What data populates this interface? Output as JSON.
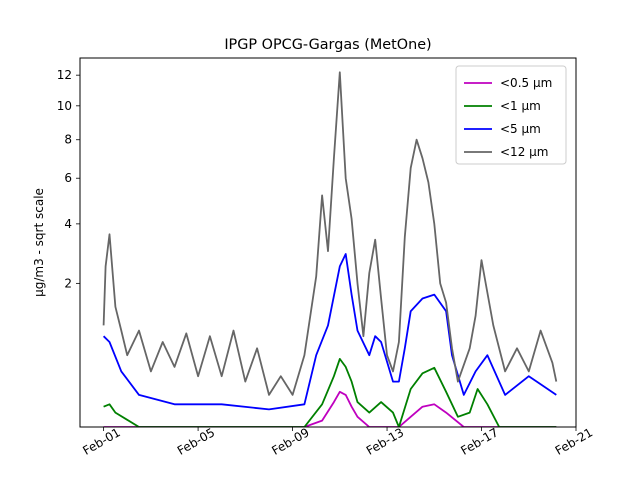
{
  "chart_data": {
    "type": "line",
    "title": "IPGP OPCG-Gargas (MetOne)",
    "ylabel": "µg/m3 - sqrt scale",
    "xlabel": "",
    "y_scale": "sqrt",
    "ylim": [
      0,
      13.2
    ],
    "xlim": [
      "2026-01-31T00:00",
      "2026-02-21T00:00"
    ],
    "x_ticks": [
      {
        "label": "Feb-01",
        "date": "2026-02-01"
      },
      {
        "label": "Feb-05",
        "date": "2026-02-05"
      },
      {
        "label": "Feb-09",
        "date": "2026-02-09"
      },
      {
        "label": "Feb-13",
        "date": "2026-02-13"
      },
      {
        "label": "Feb-17",
        "date": "2026-02-17"
      },
      {
        "label": "Feb-21",
        "date": "2026-02-21"
      }
    ],
    "y_ticks": [
      2,
      4,
      6,
      8,
      10,
      12
    ],
    "grid": false,
    "legend_position": "top-right",
    "series": [
      {
        "name": "<0.5 µm",
        "color": "#bf00bf",
        "x": [
          "2026-02-01T00:00",
          "2026-02-09T12:00",
          "2026-02-10T06:00",
          "2026-02-10T18:00",
          "2026-02-11T00:00",
          "2026-02-11T06:00",
          "2026-02-11T12:00",
          "2026-02-11T18:00",
          "2026-02-12T06:00",
          "2026-02-13T12:00",
          "2026-02-14T00:00",
          "2026-02-14T12:00",
          "2026-02-15T00:00",
          "2026-02-15T12:00",
          "2026-02-16T06:00",
          "2026-02-20T04:00"
        ],
        "y": [
          0.0,
          0.0,
          0.004,
          0.06,
          0.12,
          0.1,
          0.04,
          0.01,
          0.0,
          0.0,
          0.01,
          0.04,
          0.05,
          0.02,
          0.0,
          0.0
        ]
      },
      {
        "name": "<1 µm",
        "color": "#008000",
        "x": [
          "2026-02-01T00:00",
          "2026-02-01T06:00",
          "2026-02-01T12:00",
          "2026-02-02T00:00",
          "2026-02-02T12:00",
          "2026-02-09T12:00",
          "2026-02-10T06:00",
          "2026-02-10T18:00",
          "2026-02-11T00:00",
          "2026-02-11T06:00",
          "2026-02-11T12:00",
          "2026-02-11T18:00",
          "2026-02-12T06:00",
          "2026-02-12T18:00",
          "2026-02-13T06:00",
          "2026-02-13T12:00",
          "2026-02-14T00:00",
          "2026-02-14T12:00",
          "2026-02-15T00:00",
          "2026-02-15T12:00",
          "2026-02-16T00:00",
          "2026-02-16T12:00",
          "2026-02-16T20:00",
          "2026-02-17T06:00",
          "2026-02-17T18:00",
          "2026-02-20T04:00"
        ],
        "y": [
          0.04,
          0.05,
          0.02,
          0.005,
          0.0,
          0.0,
          0.05,
          0.25,
          0.45,
          0.35,
          0.2,
          0.06,
          0.02,
          0.06,
          0.02,
          0.0,
          0.14,
          0.28,
          0.34,
          0.12,
          0.01,
          0.02,
          0.14,
          0.05,
          0.0,
          0.0
        ]
      },
      {
        "name": "<5 µm",
        "color": "#0000ff",
        "x": [
          "2026-02-01T00:00",
          "2026-02-01T06:00",
          "2026-02-01T18:00",
          "2026-02-02T12:00",
          "2026-02-04T00:00",
          "2026-02-06T00:00",
          "2026-02-08T00:00",
          "2026-02-09T12:00",
          "2026-02-10T00:00",
          "2026-02-10T12:00",
          "2026-02-11T00:00",
          "2026-02-11T06:00",
          "2026-02-11T12:00",
          "2026-02-11T18:00",
          "2026-02-12T06:00",
          "2026-02-12T12:00",
          "2026-02-12T18:00",
          "2026-02-13T06:00",
          "2026-02-13T12:00",
          "2026-02-13T18:00",
          "2026-02-14T00:00",
          "2026-02-14T12:00",
          "2026-02-15T00:00",
          "2026-02-15T12:00",
          "2026-02-15T18:00",
          "2026-02-16T06:00",
          "2026-02-16T18:00",
          "2026-02-17T06:00",
          "2026-02-18T00:00",
          "2026-02-19T00:00",
          "2026-02-20T04:00"
        ],
        "y": [
          0.8,
          0.7,
          0.3,
          0.1,
          0.05,
          0.05,
          0.03,
          0.05,
          0.5,
          1.0,
          2.5,
          2.9,
          1.7,
          0.9,
          0.5,
          0.8,
          0.7,
          0.2,
          0.2,
          0.6,
          1.3,
          1.6,
          1.7,
          1.3,
          0.5,
          0.1,
          0.3,
          0.5,
          0.1,
          0.25,
          0.1
        ]
      },
      {
        "name": "<12 µm",
        "color": "#666666",
        "x": [
          "2026-02-01T00:00",
          "2026-02-01T02:00",
          "2026-02-01T06:00",
          "2026-02-01T12:00",
          "2026-02-01T18:00",
          "2026-02-02T00:00",
          "2026-02-02T12:00",
          "2026-02-03T00:00",
          "2026-02-03T12:00",
          "2026-02-04T00:00",
          "2026-02-04T12:00",
          "2026-02-05T00:00",
          "2026-02-05T12:00",
          "2026-02-06T00:00",
          "2026-02-06T12:00",
          "2026-02-07T00:00",
          "2026-02-07T12:00",
          "2026-02-08T00:00",
          "2026-02-08T12:00",
          "2026-02-09T00:00",
          "2026-02-09T12:00",
          "2026-02-10T00:00",
          "2026-02-10T06:00",
          "2026-02-10T12:00",
          "2026-02-10T18:00",
          "2026-02-11T00:00",
          "2026-02-11T06:00",
          "2026-02-11T12:00",
          "2026-02-11T18:00",
          "2026-02-12T00:00",
          "2026-02-12T06:00",
          "2026-02-12T12:00",
          "2026-02-12T18:00",
          "2026-02-13T00:00",
          "2026-02-13T06:00",
          "2026-02-13T12:00",
          "2026-02-13T18:00",
          "2026-02-14T00:00",
          "2026-02-14T06:00",
          "2026-02-14T12:00",
          "2026-02-14T18:00",
          "2026-02-15T00:00",
          "2026-02-15T06:00",
          "2026-02-15T12:00",
          "2026-02-15T18:00",
          "2026-02-16T00:00",
          "2026-02-16T12:00",
          "2026-02-16T18:00",
          "2026-02-17T00:00",
          "2026-02-17T12:00",
          "2026-02-18T00:00",
          "2026-02-18T12:00",
          "2026-02-19T00:00",
          "2026-02-19T12:00",
          "2026-02-20T00:00",
          "2026-02-20T04:00"
        ],
        "y": [
          1.0,
          2.5,
          3.6,
          1.4,
          0.9,
          0.5,
          0.9,
          0.3,
          0.7,
          0.35,
          0.85,
          0.25,
          0.8,
          0.25,
          0.9,
          0.2,
          0.6,
          0.1,
          0.25,
          0.1,
          0.5,
          2.2,
          5.2,
          3.0,
          7.0,
          12.2,
          6.0,
          4.2,
          2.0,
          0.8,
          2.3,
          3.4,
          1.6,
          0.5,
          0.3,
          0.7,
          3.5,
          6.5,
          8.0,
          7.0,
          5.8,
          4.0,
          2.0,
          1.5,
          0.6,
          0.2,
          0.6,
          1.2,
          2.7,
          1.0,
          0.3,
          0.6,
          0.3,
          0.9,
          0.4,
          0.2
        ]
      }
    ]
  }
}
